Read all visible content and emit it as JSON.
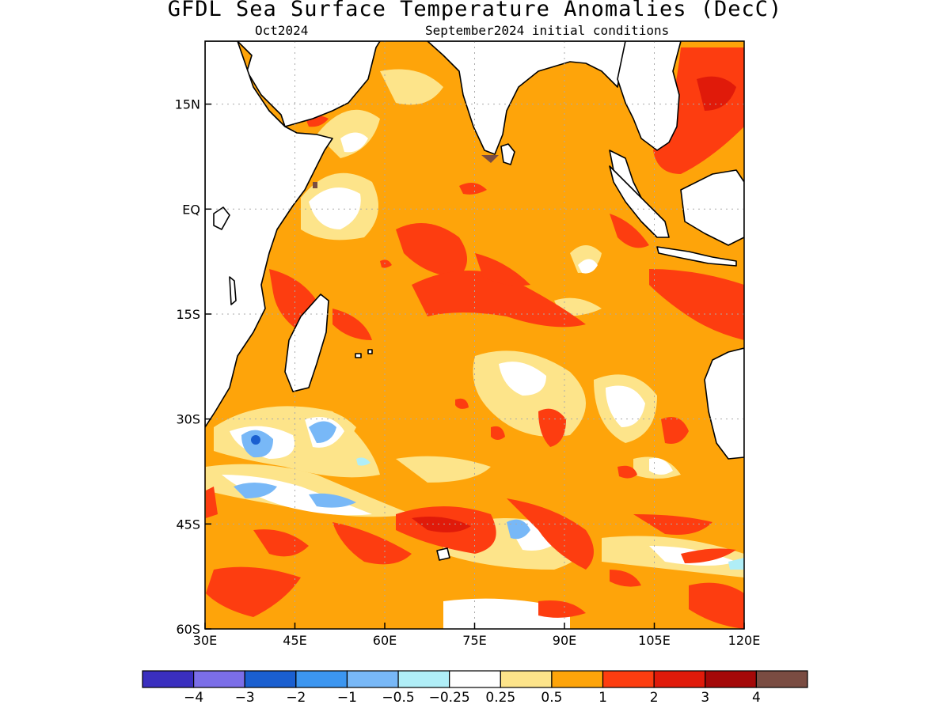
{
  "title": "GFDL Sea Surface Temperature Anomalies (DecC)",
  "subtitle_left": "Oct2024",
  "subtitle_right": "September2024 initial conditions",
  "map": {
    "lon_range": [
      30,
      120
    ],
    "lat_range": [
      -60,
      24
    ],
    "lat_ticks": [
      {
        "value": 15,
        "label": "15N"
      },
      {
        "value": 0,
        "label": "EQ"
      },
      {
        "value": -15,
        "label": "15S"
      },
      {
        "value": -30,
        "label": "30S"
      },
      {
        "value": -45,
        "label": "45S"
      },
      {
        "value": -60,
        "label": "60S"
      }
    ],
    "lon_ticks": [
      {
        "value": 30,
        "label": "30E"
      },
      {
        "value": 45,
        "label": "45E"
      },
      {
        "value": 60,
        "label": "60E"
      },
      {
        "value": 75,
        "label": "75E"
      },
      {
        "value": 90,
        "label": "90E"
      },
      {
        "value": 105,
        "label": "105E"
      },
      {
        "value": 120,
        "label": "120E"
      }
    ],
    "grid": true,
    "dominant_anomaly_range": "0.5 to 1"
  },
  "colorbar": {
    "colors": [
      "#3a2fbf",
      "#7b6ee8",
      "#1a5fd0",
      "#3c96f0",
      "#78b8f7",
      "#b0eef7",
      "#ffffff",
      "#fde48a",
      "#fea40a",
      "#fd3d10",
      "#e01a0a",
      "#a40808",
      "#7a4c42"
    ],
    "labels": [
      "−4",
      "−3",
      "−2",
      "−1",
      "−0.5",
      "−0.25",
      "0.25",
      "0.5",
      "1",
      "2",
      "3",
      "4"
    ]
  }
}
